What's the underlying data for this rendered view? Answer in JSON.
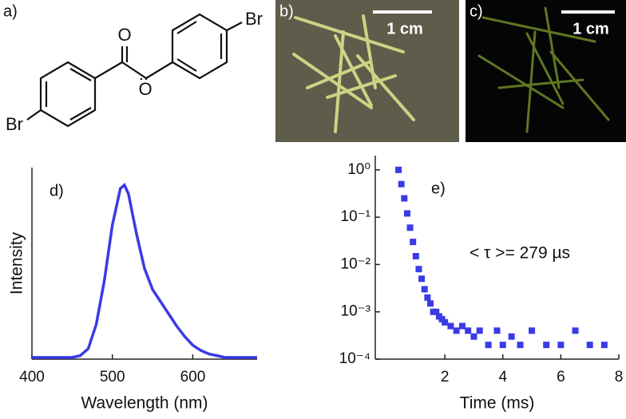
{
  "panels": {
    "a": {
      "label": "a)",
      "atoms": [
        "O",
        "O",
        "Br",
        "Br"
      ]
    },
    "b": {
      "label": "b)",
      "scale_bar": "1 cm"
    },
    "c": {
      "label": "c)",
      "scale_bar": "1 cm"
    }
  },
  "chart_data": [
    {
      "type": "line",
      "label": "d)",
      "x_label": "Wavelength (nm)",
      "y_label": "Intensity",
      "x": [
        400,
        410,
        420,
        430,
        440,
        450,
        460,
        470,
        480,
        490,
        500,
        510,
        515,
        520,
        530,
        540,
        550,
        560,
        570,
        580,
        590,
        600,
        610,
        620,
        630,
        640,
        650,
        660,
        670,
        680
      ],
      "values": [
        0.01,
        0.01,
        0.01,
        0.01,
        0.01,
        0.01,
        0.02,
        0.06,
        0.2,
        0.45,
        0.77,
        0.98,
        1.0,
        0.95,
        0.72,
        0.52,
        0.4,
        0.33,
        0.26,
        0.19,
        0.13,
        0.08,
        0.05,
        0.03,
        0.02,
        0.01,
        0.01,
        0.01,
        0.01,
        0.01
      ],
      "color": "#3a3ae6",
      "xlim": [
        400,
        680
      ],
      "ylim": [
        0,
        1.1
      ],
      "xticks": [
        400,
        500,
        600
      ]
    },
    {
      "type": "scatter",
      "label": "e)",
      "x_label": "Time (ms)",
      "annotation": "< τ >=  279 µs",
      "x": [
        0.4,
        0.5,
        0.6,
        0.7,
        0.8,
        0.9,
        1.0,
        1.1,
        1.2,
        1.3,
        1.4,
        1.5,
        1.6,
        1.7,
        1.8,
        1.9,
        2.0,
        2.2,
        2.4,
        2.6,
        2.8,
        3.0,
        3.2,
        3.5,
        3.8,
        4.0,
        4.3,
        4.6,
        5.0,
        5.5,
        6.0,
        6.5,
        7.0,
        7.5
      ],
      "values": [
        1,
        0.5,
        0.25,
        0.12,
        0.06,
        0.03,
        0.015,
        0.008,
        0.005,
        0.003,
        0.002,
        0.0015,
        0.001,
        0.001,
        0.0008,
        0.0007,
        0.0006,
        0.0005,
        0.0004,
        0.0005,
        0.0004,
        0.0003,
        0.0004,
        0.0002,
        0.0004,
        0.0002,
        0.0003,
        0.0002,
        0.0004,
        0.0002,
        0.0002,
        0.0004,
        0.0002,
        0.0002
      ],
      "color": "#3a3ae6",
      "log_y": true,
      "xlim": [
        -0.4,
        8
      ],
      "ylim": [
        0.0001,
        2
      ],
      "xticks": [
        2,
        4,
        6,
        8
      ],
      "yticks": [
        {
          "value": 1,
          "label": "10⁰"
        },
        {
          "value": 0.1,
          "label": "10⁻¹"
        },
        {
          "value": 0.01,
          "label": "10⁻²"
        },
        {
          "value": 0.001,
          "label": "10⁻³"
        },
        {
          "value": 0.0001,
          "label": "10⁻⁴"
        }
      ]
    }
  ]
}
